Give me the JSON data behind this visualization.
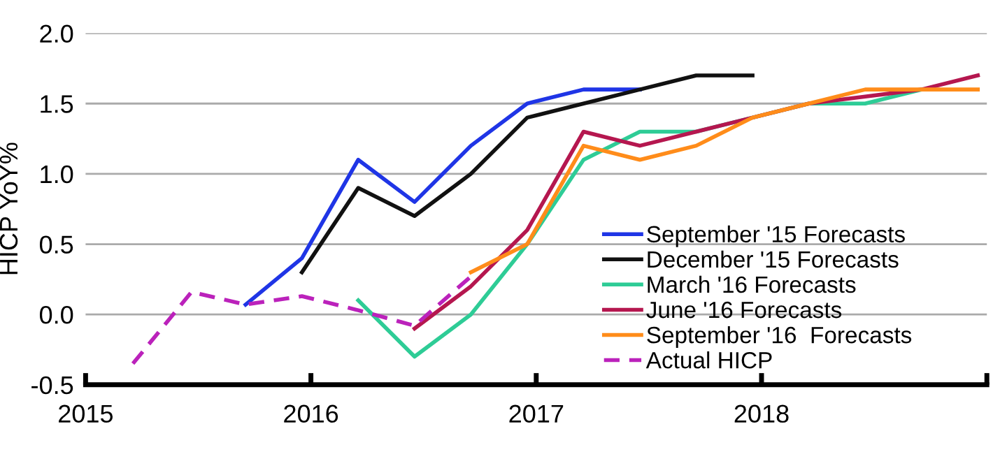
{
  "chart_data": {
    "type": "line",
    "ylabel": "HICP YoY%",
    "xlim": [
      2015,
      2019
    ],
    "xticks": [
      2015,
      2016,
      2017,
      2018,
      {
        "value": 2019,
        "label": null
      }
    ],
    "ylim": [
      -0.5,
      2.0
    ],
    "yticks": [
      -0.5,
      {
        "value": 0,
        "label": "0.0"
      },
      0.5,
      {
        "value": 1,
        "label": "1.0"
      },
      1.5,
      {
        "value": 2,
        "label": "2.0"
      }
    ],
    "grid": "y",
    "legend": "bottom right",
    "series": [
      {
        "name": "September '15 Forecasts",
        "color": "#1f35e6",
        "x": [
          2015.71,
          2015.96,
          2016.21,
          2016.46,
          2016.71,
          2016.96,
          2017.21,
          2017.46
        ],
        "values": [
          0.07,
          0.4,
          1.1,
          0.8,
          1.2,
          1.5,
          1.6,
          1.6
        ]
      },
      {
        "name": "December '15 Forecasts",
        "color": "#111111",
        "x": [
          2015.96,
          2016.21,
          2016.46,
          2016.71,
          2016.96,
          2017.21,
          2017.46,
          2017.71,
          2017.96
        ],
        "values": [
          0.3,
          0.9,
          0.7,
          1.0,
          1.4,
          1.5,
          1.6,
          1.7,
          1.7
        ]
      },
      {
        "name": "March '16 Forecasts",
        "color": "#2ecc96",
        "x": [
          2016.21,
          2016.46,
          2016.71,
          2016.96,
          2017.21,
          2017.46,
          2017.71,
          2017.96,
          2018.21,
          2018.46,
          2018.71
        ],
        "values": [
          0.1,
          -0.3,
          0.0,
          0.5,
          1.1,
          1.3,
          1.3,
          1.4,
          1.5,
          1.5,
          1.6
        ]
      },
      {
        "name": "June '16 Forecasts",
        "color": "#b5174f",
        "x": [
          2016.46,
          2016.71,
          2016.96,
          2017.21,
          2017.46,
          2017.71,
          2017.96,
          2018.21,
          2018.46,
          2018.71,
          2018.96
        ],
        "values": [
          -0.1,
          0.2,
          0.6,
          1.3,
          1.2,
          1.3,
          1.4,
          1.5,
          1.55,
          1.6,
          1.7
        ]
      },
      {
        "name": "September '16  Forecasts",
        "color": "#ff8c1a",
        "x": [
          2016.71,
          2016.96,
          2017.21,
          2017.46,
          2017.71,
          2017.96,
          2018.21,
          2018.46,
          2018.71,
          2018.96
        ],
        "values": [
          0.3,
          0.5,
          1.2,
          1.1,
          1.2,
          1.4,
          1.5,
          1.6,
          1.6,
          1.6
        ]
      },
      {
        "name": "Actual HICP",
        "color": "#bb22bb",
        "line_style": "dashed",
        "x": [
          2015.21,
          2015.47,
          2015.71,
          2015.96,
          2016.21,
          2016.46,
          2016.71
        ],
        "values": [
          -0.35,
          0.16,
          0.07,
          0.13,
          0.03,
          -0.08,
          0.27
        ]
      }
    ]
  }
}
